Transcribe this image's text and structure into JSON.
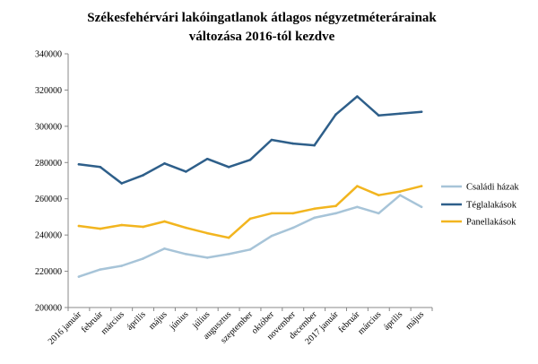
{
  "chart_data": {
    "type": "line",
    "title_line1": "Székesfehérvári lakóingatlanok átlagos négyzetméterárainak",
    "title_line2": "változása 2016-tól kezdve",
    "categories": [
      "2016 január",
      "február",
      "március",
      "április",
      "május",
      "június",
      "július",
      "augusztus",
      "szeptember",
      "október",
      "november",
      "december",
      "2017 január",
      "február",
      "március",
      "április",
      "május"
    ],
    "y_ticks": [
      "200000",
      "220000",
      "240000",
      "260000",
      "280000",
      "300000",
      "320000",
      "340000"
    ],
    "ylim": [
      200000,
      340000
    ],
    "grid": false,
    "legend_position": "right",
    "series": [
      {
        "name": "Családi házak",
        "color": "#a7c4d8",
        "values": [
          217000,
          221000,
          223000,
          227000,
          232500,
          229500,
          227500,
          229500,
          232000,
          239500,
          244000,
          249500,
          252000,
          255500,
          252000,
          262000,
          255500
        ]
      },
      {
        "name": "Téglalakások",
        "color": "#2e5f8a",
        "values": [
          279000,
          277500,
          268500,
          273000,
          279500,
          275000,
          282000,
          277500,
          281500,
          292500,
          290500,
          289500,
          306500,
          316500,
          306000,
          307000,
          308000
        ]
      },
      {
        "name": "Panellakások",
        "color": "#f2b51f",
        "values": [
          245000,
          243500,
          245500,
          244500,
          247500,
          244000,
          241000,
          238500,
          249000,
          252000,
          252000,
          254500,
          256000,
          267000,
          262000,
          264000,
          267000
        ]
      }
    ]
  }
}
